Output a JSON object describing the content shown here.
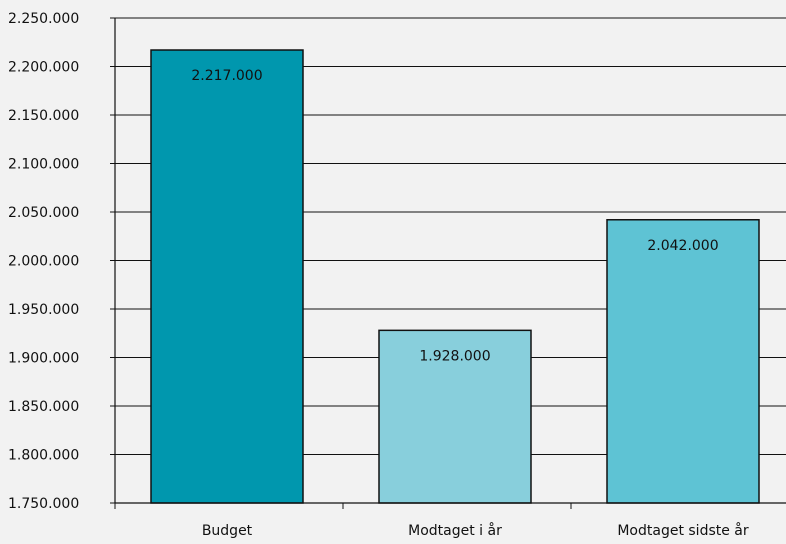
{
  "chart_data": {
    "type": "bar",
    "categories": [
      "Budget",
      "Modtaget i år",
      "Modtaget sidste år"
    ],
    "values": [
      2217000,
      1928000,
      2042000
    ],
    "data_labels": [
      "2.217.000",
      "1.928.000",
      "2.042.000"
    ],
    "title": "",
    "xlabel": "",
    "ylabel": "",
    "ylim": [
      1750000,
      2250000
    ],
    "yticks": [
      1750000,
      1800000,
      1850000,
      1900000,
      1950000,
      2000000,
      2050000,
      2100000,
      2150000,
      2200000,
      2250000
    ],
    "ytick_labels": [
      "1.750.000",
      "1.800.000",
      "1.850.000",
      "1.900.000",
      "1.950.000",
      "2.000.000",
      "2.050.000",
      "2.100.000",
      "2.150.000",
      "2.200.000",
      "2.250.000"
    ],
    "grid": true,
    "legend": "none",
    "colors": {
      "bars": [
        "#0097ae",
        "#88cfdc",
        "#5ec3d4"
      ],
      "bar_stroke": "#111111",
      "grid": "#111111",
      "axis": "#111111",
      "background": "#f2f2f2"
    }
  }
}
